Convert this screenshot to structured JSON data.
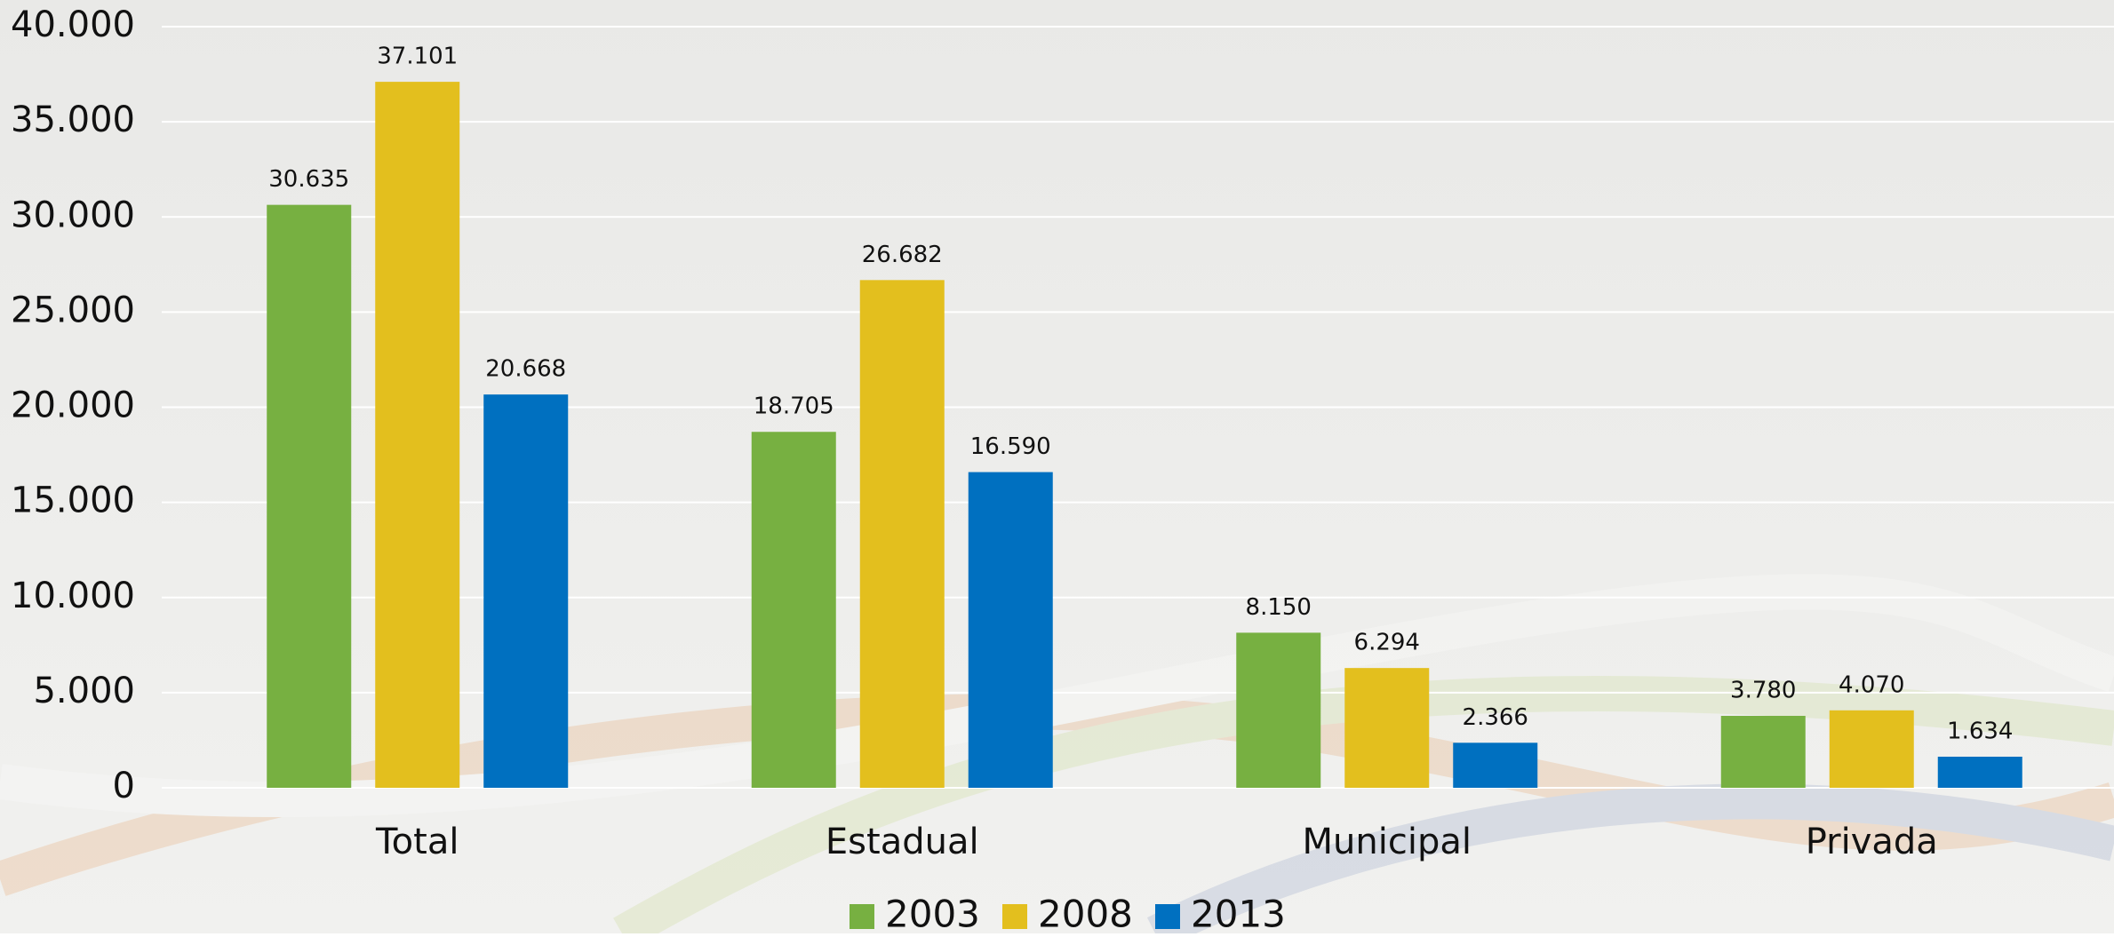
{
  "chart_data": {
    "type": "bar",
    "categories": [
      "Total",
      "Estadual",
      "Municipal",
      "Privada"
    ],
    "series": [
      {
        "name": "2003",
        "color": "#77b041",
        "values": [
          30635,
          18705,
          8150,
          3780
        ],
        "value_labels": [
          "30.635",
          "18.705",
          "8.150",
          "3.780"
        ]
      },
      {
        "name": "2008",
        "color": "#e3bf1e",
        "values": [
          37101,
          26682,
          6294,
          4070
        ],
        "value_labels": [
          "37.101",
          "26.682",
          "6.294",
          "4.070"
        ]
      },
      {
        "name": "2013",
        "color": "#0070c0",
        "values": [
          20668,
          16590,
          2366,
          1634
        ],
        "value_labels": [
          "20.668",
          "16.590",
          "2.366",
          "1.634"
        ]
      }
    ],
    "ylim": [
      0,
      40000
    ],
    "yticks": [
      0,
      {
        "value": 5000,
        "label": "5.000"
      },
      {
        "value": 10000,
        "label": "10.000"
      },
      {
        "value": 15000,
        "label": "15.000"
      },
      {
        "value": 20000,
        "label": "20.000"
      },
      {
        "value": 25000,
        "label": "25.000"
      },
      {
        "value": 30000,
        "label": "30.000"
      },
      {
        "value": 35000,
        "label": "35.000"
      },
      {
        "value": 40000,
        "label": "40.000"
      }
    ],
    "grid": true,
    "legend": "bottom"
  }
}
